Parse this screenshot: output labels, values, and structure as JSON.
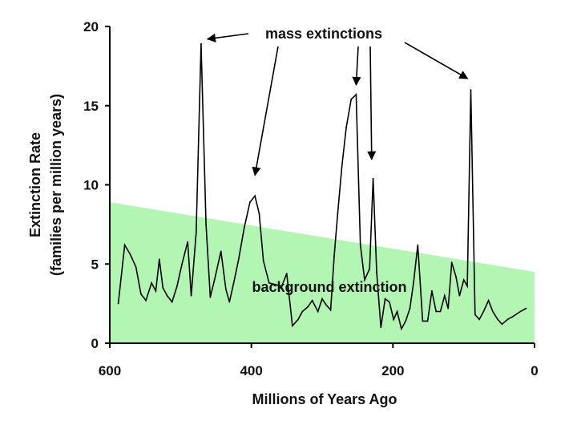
{
  "chart_data": {
    "type": "line",
    "xlabel": "Millions of Years Ago",
    "ylabel": "Extinction Rate",
    "ylabel_sub": "(families per million years)",
    "xlim": [
      600,
      0
    ],
    "ylim": [
      0,
      20
    ],
    "xticks": [
      600,
      400,
      200,
      0
    ],
    "yticks": [
      0,
      5,
      10,
      15,
      20
    ],
    "x_tick_labels": [
      "600",
      "400",
      "200",
      "0"
    ],
    "y_tick_labels": [
      "0",
      "5",
      "10",
      "15",
      "20"
    ],
    "grid": false,
    "background_band": {
      "label": "background extinction",
      "upper_start": {
        "x": 600,
        "y": 8.9
      },
      "upper_end": {
        "x": 0,
        "y": 4.5
      },
      "color": "#b3f5b3"
    },
    "annotations": [
      {
        "label": "mass extinctions",
        "targets": [
          {
            "x": 471,
            "y": 18.9
          },
          {
            "x": 395,
            "y": 10.3
          },
          {
            "x": 252,
            "y": 16.0
          },
          {
            "x": 230,
            "y": 11.3
          },
          {
            "x": 90,
            "y": 16.3
          }
        ]
      }
    ],
    "series": [
      {
        "name": "Extinction Rate",
        "color": "#000000",
        "points": [
          [
            588,
            2.5
          ],
          [
            579,
            6.2
          ],
          [
            571,
            5.6
          ],
          [
            563,
            4.8
          ],
          [
            556,
            3.1
          ],
          [
            549,
            2.7
          ],
          [
            541,
            3.8
          ],
          [
            535,
            3.3
          ],
          [
            530,
            5.3
          ],
          [
            525,
            3.5
          ],
          [
            519,
            3.0
          ],
          [
            512,
            2.6
          ],
          [
            505,
            3.6
          ],
          [
            498,
            5.0
          ],
          [
            490,
            6.4
          ],
          [
            485,
            3.0
          ],
          [
            478,
            7.0
          ],
          [
            471,
            18.9
          ],
          [
            464,
            7.5
          ],
          [
            458,
            2.9
          ],
          [
            452,
            4.0
          ],
          [
            443,
            5.8
          ],
          [
            436,
            3.4
          ],
          [
            431,
            2.6
          ],
          [
            425,
            3.8
          ],
          [
            418,
            5.3
          ],
          [
            410,
            7.3
          ],
          [
            402,
            8.9
          ],
          [
            395,
            9.3
          ],
          [
            389,
            8.2
          ],
          [
            383,
            5.2
          ],
          [
            375,
            3.8
          ],
          [
            357,
            3.6
          ],
          [
            350,
            4.4
          ],
          [
            342,
            1.1
          ],
          [
            334,
            1.5
          ],
          [
            328,
            2.0
          ],
          [
            320,
            2.3
          ],
          [
            314,
            2.7
          ],
          [
            306,
            2.0
          ],
          [
            300,
            2.8
          ],
          [
            294,
            2.4
          ],
          [
            288,
            2.1
          ],
          [
            283,
            5.5
          ],
          [
            278,
            8.2
          ],
          [
            272,
            11.2
          ],
          [
            266,
            13.6
          ],
          [
            259,
            15.4
          ],
          [
            252,
            15.7
          ],
          [
            246,
            6.2
          ],
          [
            240,
            4.0
          ],
          [
            233,
            4.7
          ],
          [
            228,
            10.4
          ],
          [
            223,
            4.5
          ],
          [
            217,
            1.0
          ],
          [
            211,
            2.8
          ],
          [
            205,
            2.6
          ],
          [
            199,
            1.5
          ],
          [
            194,
            2.0
          ],
          [
            188,
            0.9
          ],
          [
            182,
            1.4
          ],
          [
            176,
            2.2
          ],
          [
            171,
            3.8
          ],
          [
            165,
            6.2
          ],
          [
            158,
            1.4
          ],
          [
            151,
            1.4
          ],
          [
            145,
            3.3
          ],
          [
            139,
            2.0
          ],
          [
            133,
            2.0
          ],
          [
            127,
            3.0
          ],
          [
            122,
            2.2
          ],
          [
            117,
            5.1
          ],
          [
            111,
            4.2
          ],
          [
            106,
            3.0
          ],
          [
            100,
            4.0
          ],
          [
            95,
            3.6
          ],
          [
            90,
            16.0
          ],
          [
            84,
            1.8
          ],
          [
            78,
            1.5
          ],
          [
            72,
            2.0
          ],
          [
            65,
            2.7
          ],
          [
            59,
            2.0
          ],
          [
            52,
            1.5
          ],
          [
            46,
            1.2
          ],
          [
            38,
            1.5
          ],
          [
            30,
            1.7
          ],
          [
            20,
            2.0
          ],
          [
            12,
            2.2
          ]
        ]
      }
    ]
  }
}
